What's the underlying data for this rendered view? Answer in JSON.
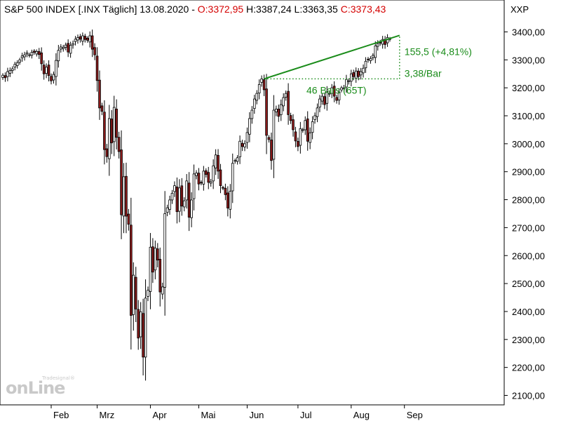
{
  "header": {
    "title": "S&P 500 INDEX [.INX  Täglich] 13.08.2020 - ",
    "open": "O:3372,95",
    "high": "H:3387,24",
    "low": "L:3363,35",
    "close": "C:3373,43",
    "symbol": "XXP"
  },
  "watermark": {
    "brand": "onLine",
    "maker": "Tradesignal®"
  },
  "annotation": {
    "change": "155,5 (+4,81%)",
    "rate": "3,38/Bar",
    "bars": "46 Bars (65T)",
    "start_value": 3232,
    "end_value": 3387.5
  },
  "colors": {
    "up": "#ffffff",
    "down": "#8b1a1a",
    "wick": "#000000",
    "trend": "#1a8c1a"
  },
  "chart_data": {
    "type": "candlestick",
    "title": "S&P 500 INDEX [.INX  Täglich] 13.08.2020",
    "ylim": [
      2100,
      3450
    ],
    "yticks": [
      2100,
      2200,
      2300,
      2400,
      2500,
      2600,
      2700,
      2800,
      2900,
      3000,
      3100,
      3200,
      3300,
      3400
    ],
    "ytick_labels": [
      "2100,00",
      "2200,00",
      "2300,00",
      "2400,00",
      "2500,00",
      "2600,00",
      "2700,00",
      "2800,00",
      "2900,00",
      "3000,00",
      "3100,00",
      "3200,00",
      "3300,00",
      "3400,00"
    ],
    "month_labels": [
      "Feb",
      "Mrz",
      "Apr",
      "Mai",
      "Jun",
      "Jul",
      "Aug",
      "Sep"
    ],
    "month_start_index": [
      20,
      39,
      61,
      81,
      101,
      122,
      144,
      166
    ],
    "close": [
      3245,
      3236,
      3258,
      3262,
      3268,
      3284,
      3290,
      3300,
      3314,
      3318,
      3325,
      3318,
      3327,
      3327,
      3330,
      3319,
      3286,
      3250,
      3274,
      3244,
      3225,
      3248,
      3298,
      3334,
      3346,
      3345,
      3353,
      3328,
      3352,
      3358,
      3374,
      3380,
      3374,
      3386,
      3373,
      3370,
      3386,
      3338,
      3318,
      3226,
      3128,
      3116,
      2979,
      2954,
      3090,
      3003,
      3130,
      3023,
      2972,
      2746,
      2882,
      2741,
      2712,
      2386,
      2530,
      2409,
      2305,
      2399,
      2237,
      2448,
      2476,
      2630,
      2541,
      2627,
      2584,
      2470,
      2488,
      2750,
      2771,
      2799,
      2823,
      2850,
      2757,
      2842,
      2777,
      2796,
      2867,
      2737,
      2799,
      2892,
      2895,
      2856,
      2860,
      2902,
      2890,
      2862,
      2864,
      2921,
      2960,
      2902,
      2850,
      2841,
      2818,
      2770,
      2830,
      2930,
      2940,
      2950,
      3009,
      2990,
      3000,
      3040,
      3090,
      3120,
      3160,
      3180,
      3212,
      3232,
      3193,
      3030,
      3015,
      2940,
      3120,
      3124,
      3098,
      3140,
      3165,
      3180,
      3104,
      3083,
      3050,
      3010,
      2990,
      3054,
      3050,
      3083,
      3009,
      3039,
      3079,
      3100,
      3128,
      3160,
      3170,
      3140,
      3185,
      3180,
      3200,
      3170,
      3155,
      3185,
      3200,
      3200,
      3230,
      3225,
      3250,
      3240,
      3260,
      3240,
      3258,
      3270,
      3295,
      3300,
      3305,
      3316,
      3350,
      3358,
      3362,
      3373,
      3355,
      3380,
      3373
    ]
  }
}
